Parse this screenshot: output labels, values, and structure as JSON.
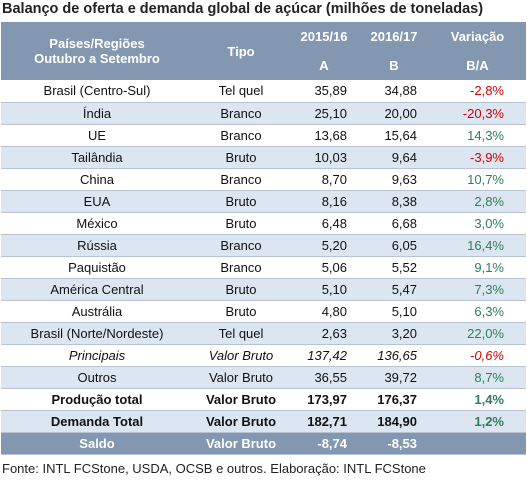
{
  "title": "Balanço de oferta e demanda global de açúcar (milhões de toneladas)",
  "header": [
    [
      "Países/Regiões",
      "Outubro a Setembro"
    ],
    "Tipo",
    "2015/16",
    "2016/17",
    "Variação"
  ],
  "subheader": [
    "A",
    "B",
    "B/A"
  ],
  "rows": [
    {
      "cells": [
        "Brasil (Centro-Sul)",
        "Tel quel",
        "35,89",
        "34,88",
        "-2,8%"
      ]
    },
    {
      "cells": [
        "Índia",
        "Branco",
        "25,10",
        "20,00",
        "-20,3%"
      ]
    },
    {
      "cells": [
        "UE",
        "Branco",
        "13,68",
        "15,64",
        "14,3%"
      ]
    },
    {
      "cells": [
        "Tailândia",
        "Bruto",
        "10,03",
        "9,64",
        "-3,9%"
      ]
    },
    {
      "cells": [
        "China",
        "Branco",
        "8,70",
        "9,63",
        "10,7%"
      ]
    },
    {
      "cells": [
        "EUA",
        "Bruto",
        "8,16",
        "8,38",
        "2,8%"
      ]
    },
    {
      "cells": [
        "México",
        "Bruto",
        "6,48",
        "6,68",
        "3,0%"
      ]
    },
    {
      "cells": [
        "Rússia",
        "Branco",
        "5,20",
        "6,05",
        "16,4%"
      ]
    },
    {
      "cells": [
        "Paquistão",
        "Branco",
        "5,06",
        "5,52",
        "9,1%"
      ]
    },
    {
      "cells": [
        "América Central",
        "Bruto",
        "5,10",
        "5,47",
        "7,3%"
      ]
    },
    {
      "cells": [
        "Austrália",
        "Bruto",
        "4,80",
        "5,10",
        "6,3%"
      ]
    },
    {
      "cells": [
        "Brasil (Norte/Nordeste)",
        "Tel quel",
        "2,63",
        "3,20",
        "22,0%"
      ]
    },
    {
      "cells": [
        "Principais",
        "Valor Bruto",
        "137,42",
        "136,65",
        "-0,6%"
      ],
      "style": "italic"
    },
    {
      "cells": [
        "Outros",
        "Valor Bruto",
        "36,55",
        "39,72",
        "8,7%"
      ]
    },
    {
      "cells": [
        "Produção total",
        "Valor Bruto",
        "173,97",
        "176,37",
        "1,4%"
      ],
      "style": "bold"
    },
    {
      "cells": [
        "Demanda Total",
        "Valor Bruto",
        "182,71",
        "184,90",
        "1,2%"
      ],
      "style": "bold"
    },
    {
      "cells": [
        "Saldo",
        "Valor Bruto",
        "-8,74",
        "-8,53"
      ],
      "style": "dark"
    }
  ],
  "source": "Fonte: INTL FCStone, USDA, OCSB e outros. Elaboração: INTL FCStone"
}
